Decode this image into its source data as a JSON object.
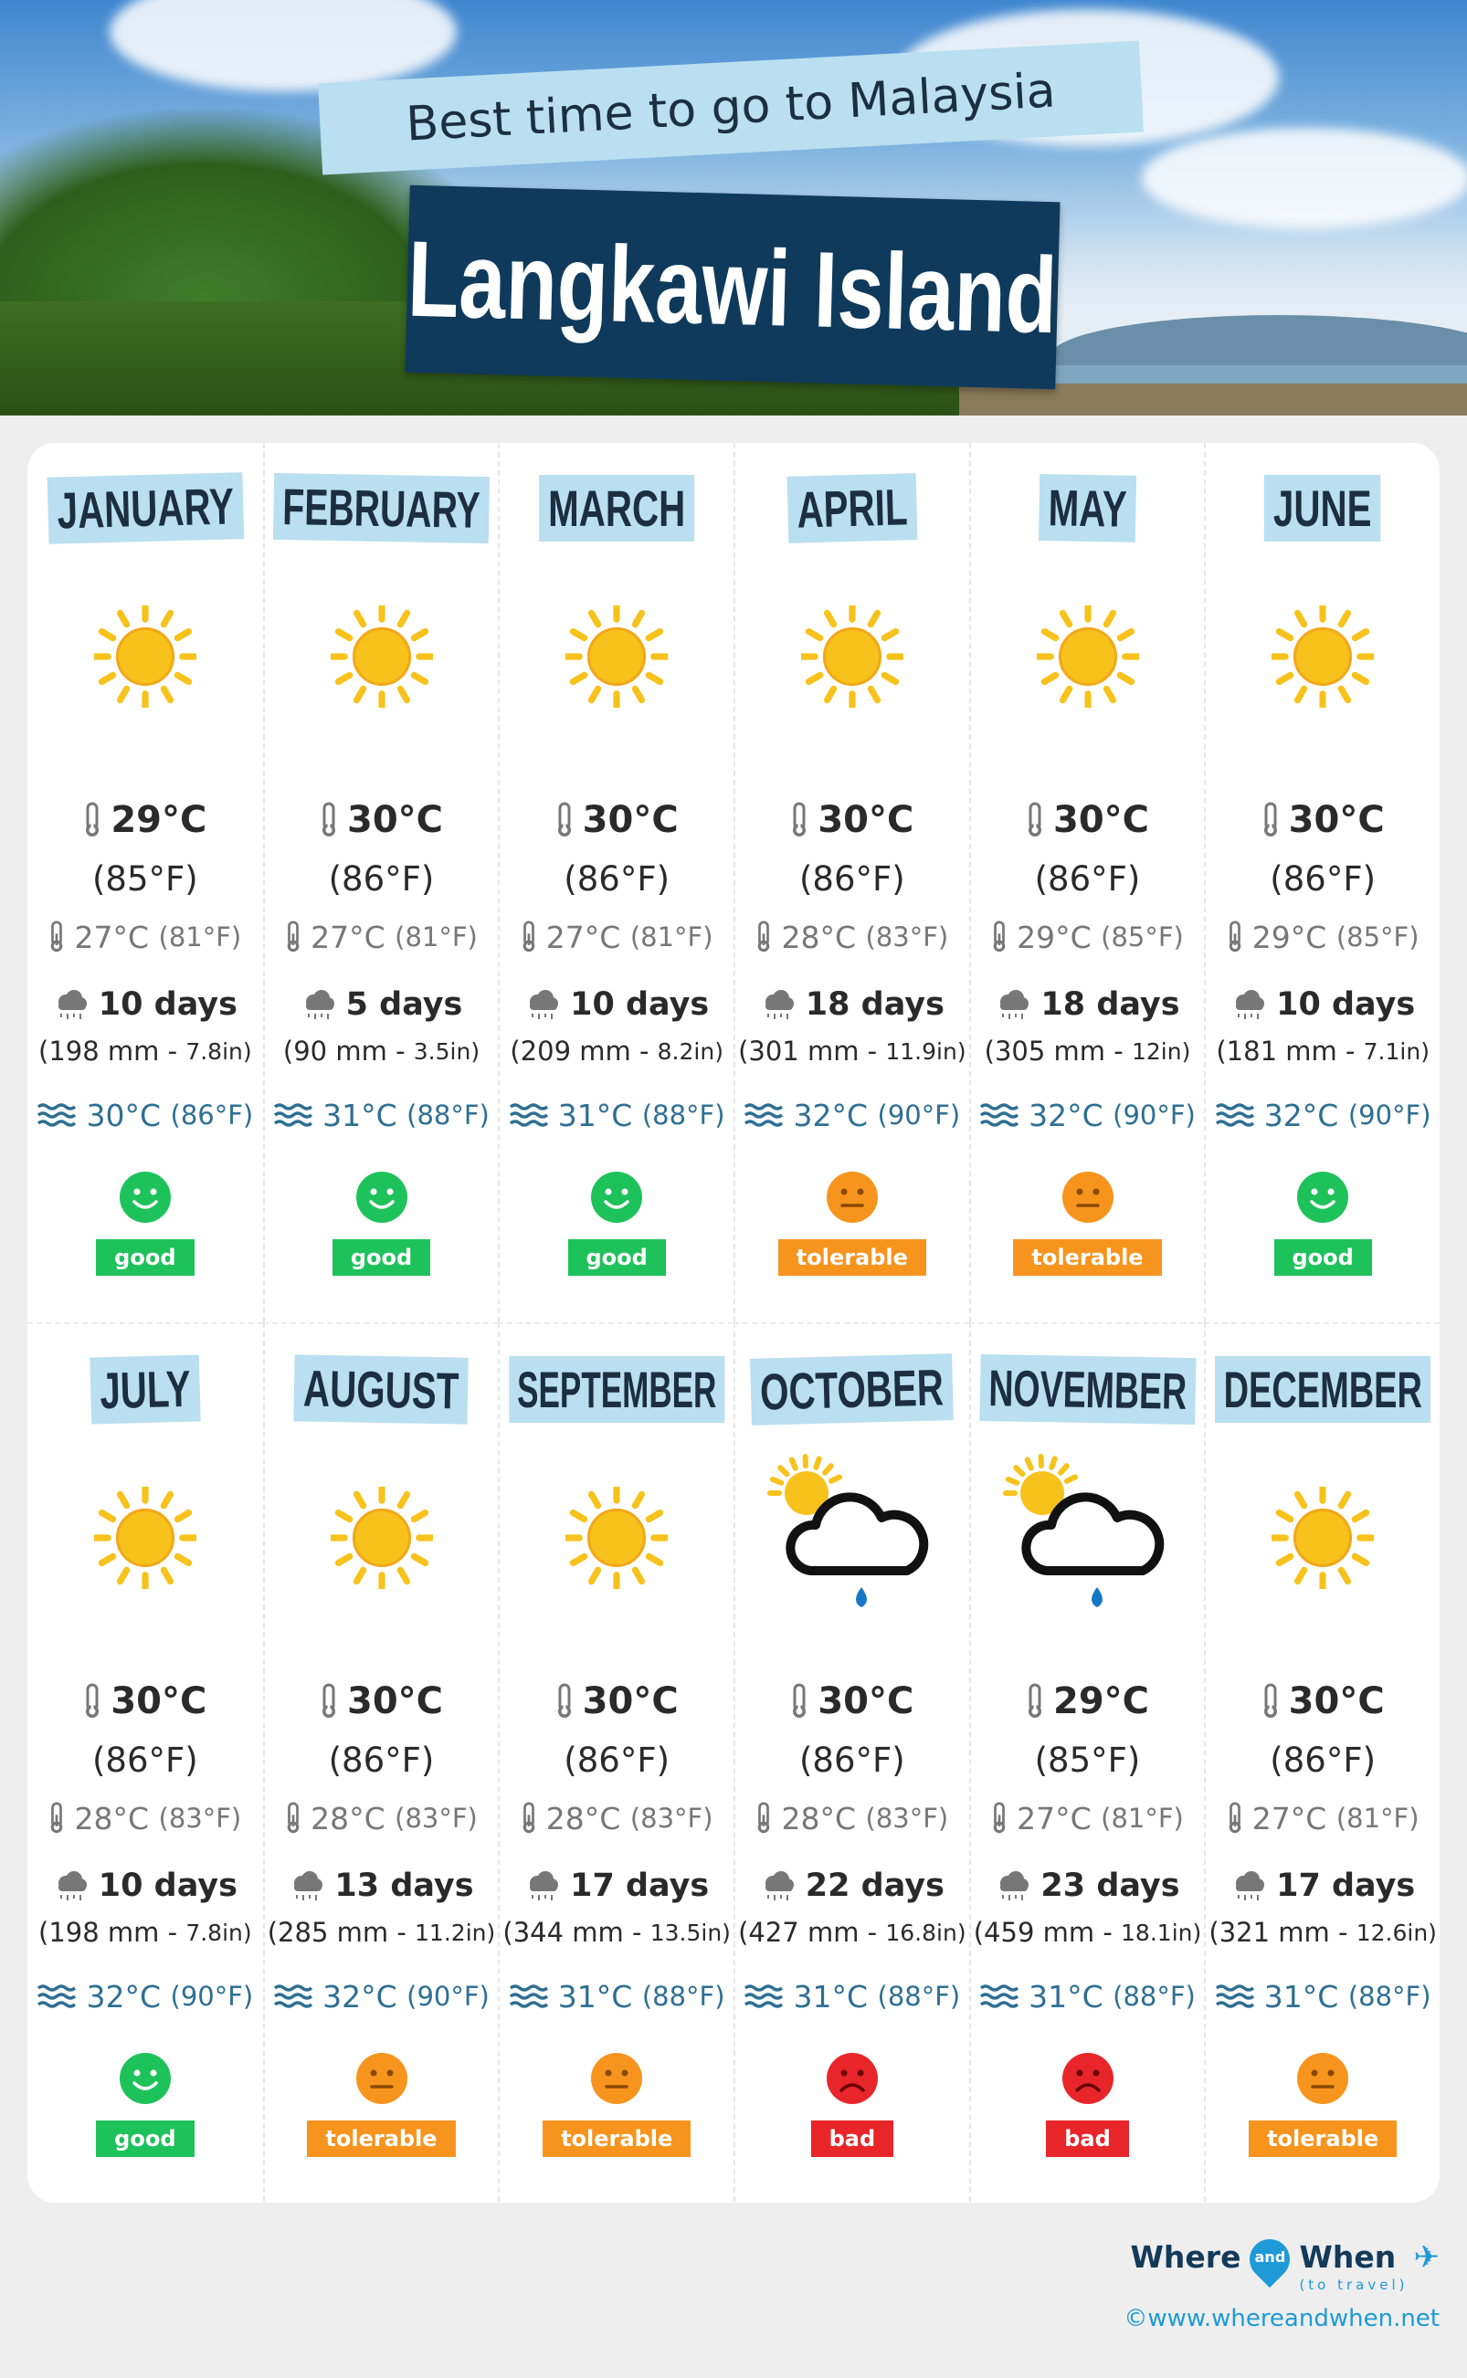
{
  "header": {
    "subtitle": "Best time to go to Malaysia",
    "title": "Langkawi Island"
  },
  "colors": {
    "good": "#1ec25a",
    "tolerable": "#f7941d",
    "bad": "#e8262a",
    "label_bg": "#b9dff0",
    "title_bg": "#0f3a5c",
    "sea_text": "#2e6f93"
  },
  "months": [
    {
      "name": "JANUARY",
      "icon": "sun-icon",
      "max_c": "29°C",
      "max_f": "(85°F)",
      "min_c": "27°C",
      "min_f": "(81°F)",
      "rain_days": "10 days",
      "rain_mm": "(198 mm - ",
      "rain_in": "7.8in)",
      "sea_c": "30°C",
      "sea_f": "(86°F)",
      "rating": "good"
    },
    {
      "name": "FEBRUARY",
      "icon": "sun-icon",
      "max_c": "30°C",
      "max_f": "(86°F)",
      "min_c": "27°C",
      "min_f": "(81°F)",
      "rain_days": "5 days",
      "rain_mm": "(90 mm - ",
      "rain_in": "3.5in)",
      "sea_c": "31°C",
      "sea_f": "(88°F)",
      "rating": "good"
    },
    {
      "name": "MARCH",
      "icon": "sun-icon",
      "max_c": "30°C",
      "max_f": "(86°F)",
      "min_c": "27°C",
      "min_f": "(81°F)",
      "rain_days": "10 days",
      "rain_mm": "(209 mm - ",
      "rain_in": "8.2in)",
      "sea_c": "31°C",
      "sea_f": "(88°F)",
      "rating": "good"
    },
    {
      "name": "APRIL",
      "icon": "sun-icon",
      "max_c": "30°C",
      "max_f": "(86°F)",
      "min_c": "28°C",
      "min_f": "(83°F)",
      "rain_days": "18 days",
      "rain_mm": "(301 mm - ",
      "rain_in": "11.9in)",
      "sea_c": "32°C",
      "sea_f": "(90°F)",
      "rating": "tolerable"
    },
    {
      "name": "MAY",
      "icon": "sun-icon",
      "max_c": "30°C",
      "max_f": "(86°F)",
      "min_c": "29°C",
      "min_f": "(85°F)",
      "rain_days": "18 days",
      "rain_mm": "(305 mm - ",
      "rain_in": "12in)",
      "sea_c": "32°C",
      "sea_f": "(90°F)",
      "rating": "tolerable"
    },
    {
      "name": "JUNE",
      "icon": "sun-icon",
      "max_c": "30°C",
      "max_f": "(86°F)",
      "min_c": "29°C",
      "min_f": "(85°F)",
      "rain_days": "10 days",
      "rain_mm": "(181 mm - ",
      "rain_in": "7.1in)",
      "sea_c": "32°C",
      "sea_f": "(90°F)",
      "rating": "good"
    },
    {
      "name": "JULY",
      "icon": "sun-icon",
      "max_c": "30°C",
      "max_f": "(86°F)",
      "min_c": "28°C",
      "min_f": "(83°F)",
      "rain_days": "10 days",
      "rain_mm": "(198 mm - ",
      "rain_in": "7.8in)",
      "sea_c": "32°C",
      "sea_f": "(90°F)",
      "rating": "good"
    },
    {
      "name": "AUGUST",
      "icon": "sun-icon",
      "max_c": "30°C",
      "max_f": "(86°F)",
      "min_c": "28°C",
      "min_f": "(83°F)",
      "rain_days": "13 days",
      "rain_mm": "(285 mm - ",
      "rain_in": "11.2in)",
      "sea_c": "32°C",
      "sea_f": "(90°F)",
      "rating": "tolerable"
    },
    {
      "name": "SEPTEMBER",
      "icon": "sun-icon",
      "max_c": "30°C",
      "max_f": "(86°F)",
      "min_c": "28°C",
      "min_f": "(83°F)",
      "rain_days": "17 days",
      "rain_mm": "(344 mm - ",
      "rain_in": "13.5in)",
      "sea_c": "31°C",
      "sea_f": "(88°F)",
      "rating": "tolerable"
    },
    {
      "name": "OCTOBER",
      "icon": "sun-cloud-rain-icon",
      "max_c": "30°C",
      "max_f": "(86°F)",
      "min_c": "28°C",
      "min_f": "(83°F)",
      "rain_days": "22 days",
      "rain_mm": "(427 mm - ",
      "rain_in": "16.8in)",
      "sea_c": "31°C",
      "sea_f": "(88°F)",
      "rating": "bad"
    },
    {
      "name": "NOVEMBER",
      "icon": "sun-cloud-rain-icon",
      "max_c": "29°C",
      "max_f": "(85°F)",
      "min_c": "27°C",
      "min_f": "(81°F)",
      "rain_days": "23 days",
      "rain_mm": "(459 mm - ",
      "rain_in": "18.1in)",
      "sea_c": "31°C",
      "sea_f": "(88°F)",
      "rating": "bad"
    },
    {
      "name": "DECEMBER",
      "icon": "sun-icon",
      "max_c": "30°C",
      "max_f": "(86°F)",
      "min_c": "27°C",
      "min_f": "(81°F)",
      "rain_days": "17 days",
      "rain_mm": "(321 mm - ",
      "rain_in": "12.6in)",
      "sea_c": "31°C",
      "sea_f": "(88°F)",
      "rating": "tolerable"
    }
  ],
  "footer": {
    "logo_where": "Where",
    "logo_and": "and",
    "logo_when": "When",
    "logo_tagline": "(to travel)",
    "url": "©www.whereandwhen.net"
  }
}
